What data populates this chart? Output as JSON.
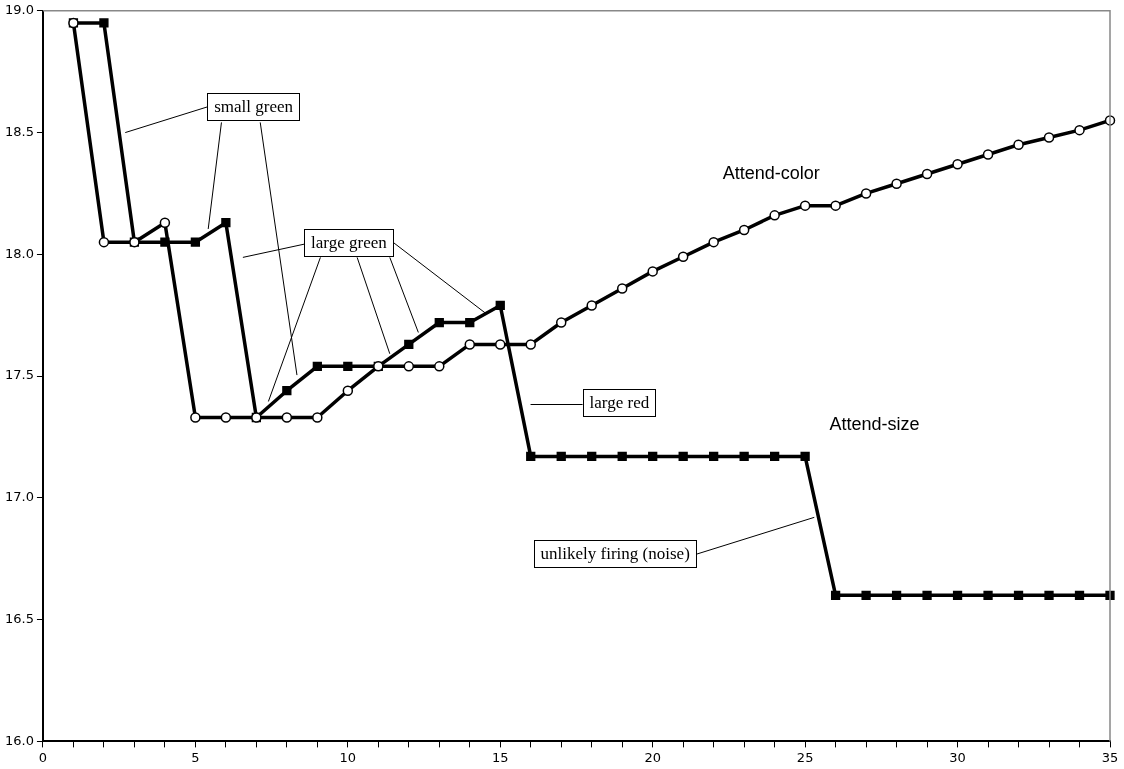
{
  "chart_data": {
    "type": "line",
    "x": [
      1,
      2,
      3,
      4,
      5,
      6,
      7,
      8,
      9,
      10,
      11,
      12,
      13,
      14,
      15,
      16,
      17,
      18,
      19,
      20,
      21,
      22,
      23,
      24,
      25,
      26,
      27,
      28,
      29,
      30,
      31,
      32,
      33,
      34,
      35
    ],
    "series": [
      {
        "name": "Attend-color",
        "color": "#000000",
        "marker": "circle",
        "values": [
          18.95,
          18.05,
          18.05,
          18.13,
          17.33,
          17.33,
          17.33,
          17.33,
          17.33,
          17.44,
          17.54,
          17.54,
          17.54,
          17.63,
          17.63,
          17.63,
          17.72,
          17.79,
          17.86,
          17.93,
          17.99,
          18.05,
          18.1,
          18.16,
          18.2,
          18.2,
          18.25,
          18.29,
          18.33,
          18.37,
          18.41,
          18.45,
          18.48,
          18.51,
          18.55
        ]
      },
      {
        "name": "Attend-size",
        "color": "#000000",
        "marker": "square",
        "values": [
          18.95,
          18.95,
          18.05,
          18.05,
          18.05,
          18.13,
          17.33,
          17.44,
          17.54,
          17.54,
          17.54,
          17.63,
          17.72,
          17.72,
          17.79,
          17.17,
          17.17,
          17.17,
          17.17,
          17.17,
          17.17,
          17.17,
          17.17,
          17.17,
          17.17,
          16.6,
          16.6,
          16.6,
          16.6,
          16.6,
          16.6,
          16.6,
          16.6,
          16.6,
          16.6
        ]
      }
    ],
    "xlim": [
      0,
      35
    ],
    "xticks": [
      0,
      {
        "value": 1,
        "label": null
      },
      {
        "value": 2,
        "label": null
      },
      {
        "value": 3,
        "label": null
      },
      {
        "value": 4,
        "label": null
      },
      5,
      {
        "value": 6,
        "label": null
      },
      {
        "value": 7,
        "label": null
      },
      {
        "value": 8,
        "label": null
      },
      {
        "value": 9,
        "label": null
      },
      10,
      {
        "value": 11,
        "label": null
      },
      {
        "value": 12,
        "label": null
      },
      {
        "value": 13,
        "label": null
      },
      {
        "value": 14,
        "label": null
      },
      15,
      {
        "value": 16,
        "label": null
      },
      {
        "value": 17,
        "label": null
      },
      {
        "value": 18,
        "label": null
      },
      {
        "value": 19,
        "label": null
      },
      20,
      {
        "value": 21,
        "label": null
      },
      {
        "value": 22,
        "label": null
      },
      {
        "value": 23,
        "label": null
      },
      {
        "value": 24,
        "label": null
      },
      25,
      {
        "value": 26,
        "label": null
      },
      {
        "value": 27,
        "label": null
      },
      {
        "value": 28,
        "label": null
      },
      {
        "value": 29,
        "label": null
      },
      30,
      {
        "value": 31,
        "label": null
      },
      {
        "value": 32,
        "label": null
      },
      {
        "value": 33,
        "label": null
      },
      {
        "value": 34,
        "label": null
      },
      35
    ],
    "ylim": [
      16,
      19
    ],
    "yticks": [
      {
        "value": 16,
        "label": "16.0"
      },
      {
        "value": 16.5,
        "label": "16.5"
      },
      {
        "value": 17,
        "label": "17.0"
      },
      {
        "value": 17.5,
        "label": "17.5"
      },
      {
        "value": 18,
        "label": "18.0"
      },
      {
        "value": 18.5,
        "label": "18.5"
      },
      {
        "value": 19,
        "label": "19.0"
      }
    ],
    "grid": false,
    "legend": false,
    "line_style": "solid",
    "annotations": [
      {
        "text": "small green",
        "x": 2.7,
        "y": 18.5
      },
      {
        "text": "large green",
        "x": 14.5,
        "y": 17.76
      },
      "large red",
      {
        "text": "unlikely firing (noise)",
        "x": 25.3,
        "y": 16.92
      }
    ]
  }
}
